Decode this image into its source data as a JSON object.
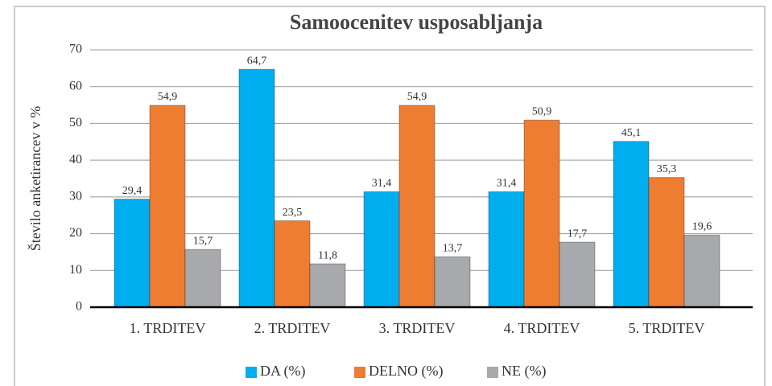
{
  "chart_data": {
    "type": "bar",
    "title": "Samoocenitev usposabljanja",
    "y_label": "Število anketirancev v %",
    "categories": [
      "1. TRDITEV",
      "2. TRDITEV",
      "3. TRDITEV",
      "4. TRDITEV",
      "5. TRDITEV"
    ],
    "series": [
      {
        "name": "DA (%)",
        "color": "#00aeef",
        "values": [
          29.4,
          64.7,
          31.4,
          31.4,
          45.1
        ],
        "value_labels": [
          "29,4",
          "64,7",
          "31,4",
          "31,4",
          "45,1"
        ]
      },
      {
        "name": "DELNO (%)",
        "color": "#ef7d31",
        "values": [
          54.9,
          23.5,
          54.9,
          50.9,
          35.3
        ],
        "value_labels": [
          "54,9",
          "23,5",
          "54,9",
          "50,9",
          "35,3"
        ]
      },
      {
        "name": "NE (%)",
        "color": "#a7a9ac",
        "values": [
          15.7,
          11.8,
          13.7,
          17.7,
          19.6
        ],
        "value_labels": [
          "15,7",
          "11,8",
          "13,7",
          "17,7",
          "19,6"
        ]
      }
    ],
    "ylim": [
      0,
      70
    ],
    "yticks": [
      0,
      10,
      20,
      30,
      40,
      50,
      60,
      70
    ],
    "grid": true,
    "legend": "bottom"
  }
}
